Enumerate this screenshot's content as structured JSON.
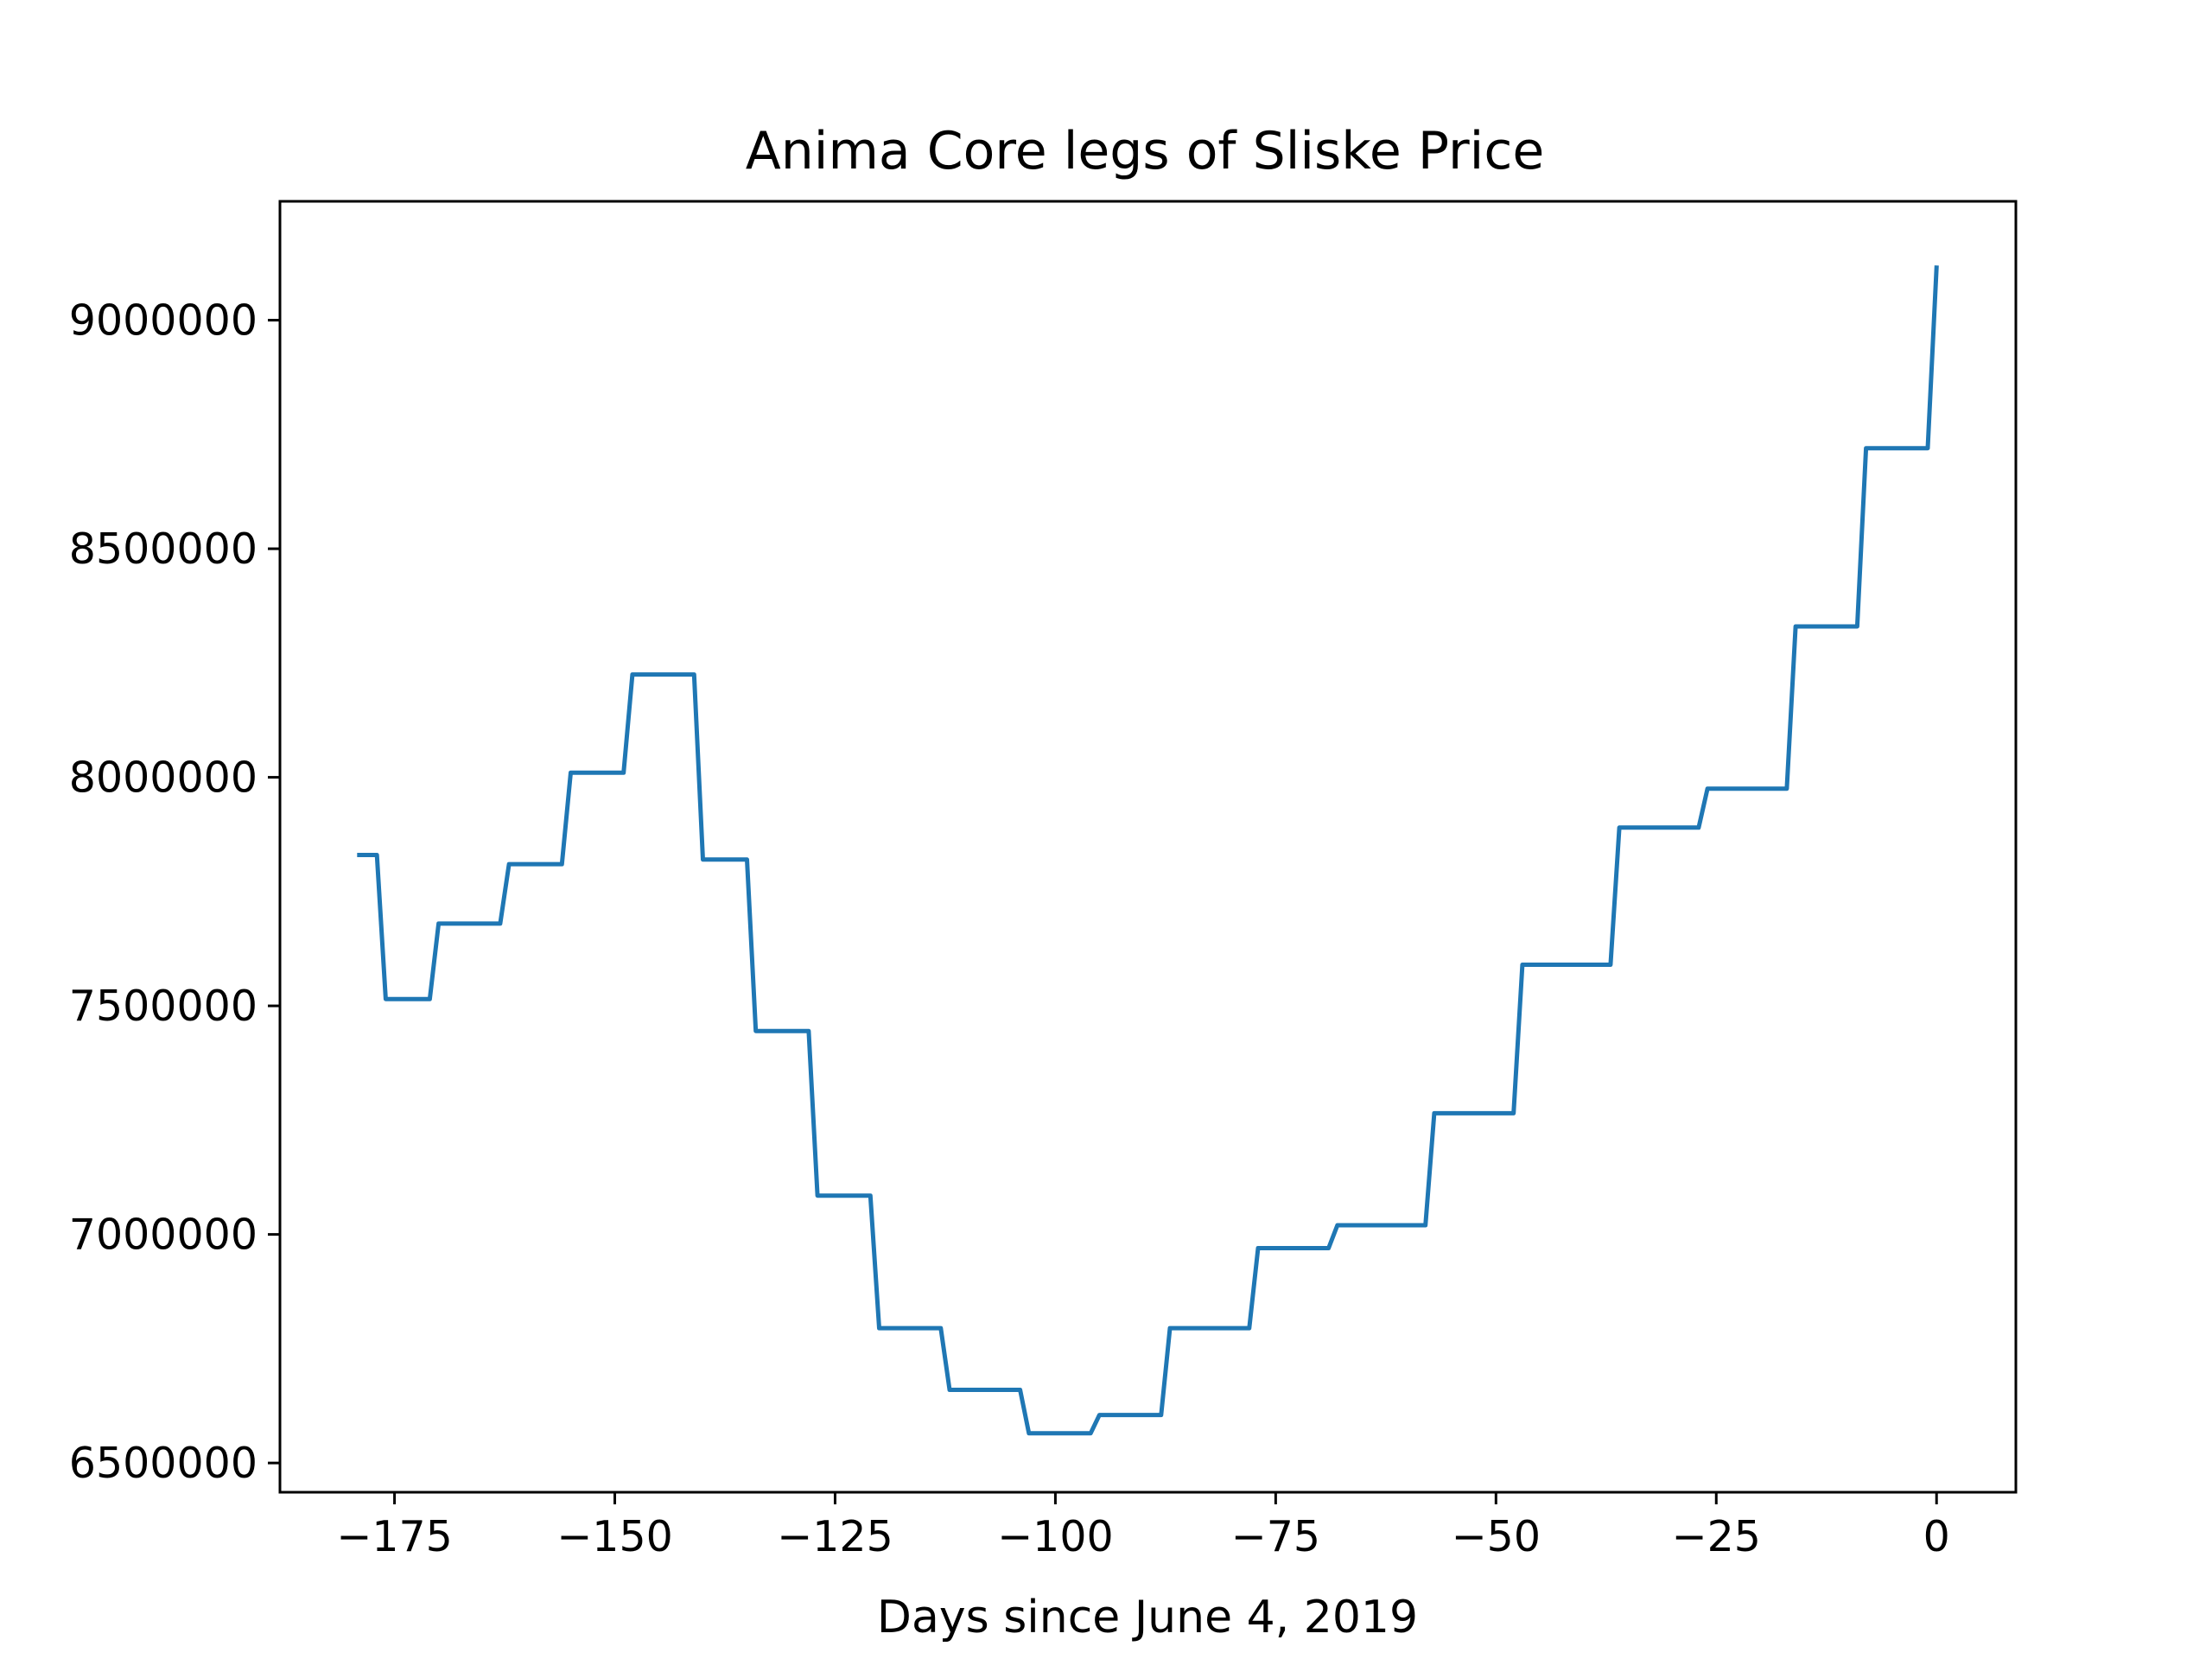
{
  "chart_data": {
    "type": "line",
    "title": "Anima Core legs of Sliske Price",
    "xlabel": "Days since June 4, 2019",
    "ylabel": "",
    "xlim": [
      -188,
      9
    ],
    "ylim": [
      6436000,
      9260000
    ],
    "xticks": [
      -175,
      -150,
      -125,
      -100,
      -75,
      -50,
      -25,
      0
    ],
    "xtick_labels": [
      "−175",
      "−150",
      "−125",
      "−100",
      "−75",
      "−50",
      "−25",
      "0"
    ],
    "yticks": [
      6500000,
      7000000,
      7500000,
      8000000,
      8500000,
      9000000
    ],
    "ytick_labels": [
      "6500000",
      "7000000",
      "7500000",
      "8000000",
      "8500000",
      "9000000"
    ],
    "grid": false,
    "legend": "none",
    "series": [
      {
        "color": "#1f77b4",
        "x": [
          -179,
          -178,
          -177,
          -176,
          -171,
          -170,
          -163,
          -162,
          -156,
          -155,
          -149,
          -148,
          -141,
          -140,
          -135,
          -134,
          -128,
          -127,
          -121,
          -120,
          -113,
          -112,
          -104,
          -103,
          -96,
          -95,
          -88,
          -87,
          -78,
          -77,
          -69,
          -68,
          -58,
          -57,
          -48,
          -47,
          -37,
          -36,
          -27,
          -26,
          -17,
          -16,
          -9,
          -8,
          -1,
          0
        ],
        "y": [
          7830000,
          7830000,
          7830000,
          7515000,
          7515000,
          7680000,
          7680000,
          7810000,
          7810000,
          8010000,
          8010000,
          8225000,
          8225000,
          7820000,
          7820000,
          7445000,
          7445000,
          7085000,
          7085000,
          6795000,
          6795000,
          6660000,
          6660000,
          6565000,
          6565000,
          6605000,
          6605000,
          6795000,
          6795000,
          6970000,
          6970000,
          7020000,
          7020000,
          7265000,
          7265000,
          7590000,
          7590000,
          7890000,
          7890000,
          7975000,
          7975000,
          8330000,
          8330000,
          8720000,
          8720000,
          9115000
        ]
      }
    ]
  }
}
